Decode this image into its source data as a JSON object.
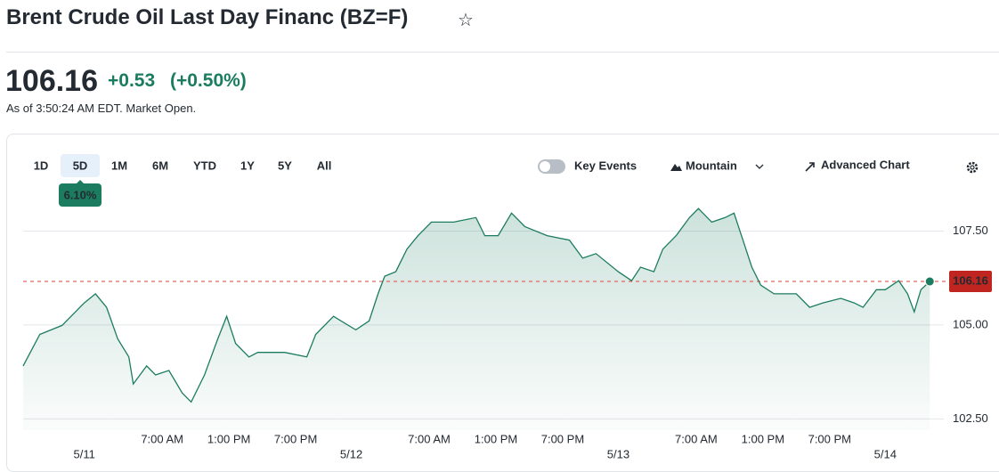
{
  "header": {
    "title": "Brent Crude Oil Last Day Financ (BZ=F)"
  },
  "quote": {
    "price": "106.16",
    "change": "+0.53",
    "change_percent": "(+0.50%)",
    "timestamp": "As of 3:50:24 AM EDT. Market Open."
  },
  "toolbar": {
    "ranges": [
      "1D",
      "5D",
      "1M",
      "6M",
      "YTD",
      "1Y",
      "5Y",
      "All"
    ],
    "selected_range_badge": "6.10%",
    "key_events": "Key Events",
    "chart_type": "Mountain",
    "advanced_chart": "Advanced Chart"
  },
  "chart_data": {
    "type": "line",
    "color": "#1c7c60",
    "x": [
      -5.5,
      -4,
      -2,
      0,
      1,
      2,
      3,
      4,
      4.4,
      5.6,
      6.4,
      7.6,
      8.8,
      9.6,
      10.8,
      12,
      12.8,
      13.6,
      14.8,
      15.6,
      18,
      20,
      20.8,
      22.4,
      24.4,
      25.6,
      26.4,
      27,
      28,
      29,
      30,
      31.2,
      33.2,
      35.2,
      36,
      37.2,
      38.4,
      39.6,
      41.6,
      43.6,
      44.8,
      46,
      48,
      49.2,
      50,
      51.2,
      52,
      53.2,
      54.4,
      55.2,
      56.4,
      57.6,
      58.4,
      59.2,
      60,
      60.8,
      62,
      64,
      65.2,
      66.4,
      68,
      69.2,
      70,
      71.2,
      72,
      73.2,
      74,
      74.6,
      75.2,
      76
    ],
    "values": [
      103.91,
      104.75,
      104.99,
      105.59,
      105.83,
      105.47,
      104.63,
      104.15,
      103.43,
      103.91,
      103.67,
      103.79,
      103.19,
      102.95,
      103.67,
      104.63,
      105.23,
      104.51,
      104.15,
      104.27,
      104.27,
      104.15,
      104.75,
      105.23,
      104.87,
      105.11,
      105.83,
      106.3,
      106.42,
      107.02,
      107.38,
      107.74,
      107.74,
      107.86,
      107.38,
      107.38,
      107.98,
      107.62,
      107.38,
      107.26,
      106.78,
      106.9,
      106.42,
      106.18,
      106.54,
      106.42,
      107.02,
      107.38,
      107.86,
      108.1,
      107.74,
      107.86,
      107.98,
      107.26,
      106.54,
      106.06,
      105.83,
      105.83,
      105.47,
      105.59,
      105.71,
      105.59,
      105.47,
      105.94,
      105.94,
      106.18,
      105.83,
      105.35,
      105.94,
      106.16
    ],
    "xlim": [
      -5.5,
      77.5
    ],
    "xticks": [
      {
        "value": 7,
        "label": "7:00 AM"
      },
      {
        "value": 13,
        "label": "1:00 PM"
      },
      {
        "value": 19,
        "label": "7:00 PM"
      },
      {
        "value": 31,
        "label": "7:00 AM"
      },
      {
        "value": 37,
        "label": "1:00 PM"
      },
      {
        "value": 43,
        "label": "7:00 PM"
      },
      {
        "value": 55,
        "label": "7:00 AM"
      },
      {
        "value": 61,
        "label": "1:00 PM"
      },
      {
        "value": 67,
        "label": "7:00 PM"
      }
    ],
    "date_ticks": [
      {
        "value": 0,
        "label": "5/11"
      },
      {
        "value": 24,
        "label": "5/12"
      },
      {
        "value": 48,
        "label": "5/13"
      },
      {
        "value": 72,
        "label": "5/14"
      }
    ],
    "ylim": [
      102.2,
      108.2
    ],
    "yticks": [
      {
        "value": 107.5,
        "label": "107.50"
      },
      {
        "value": 105,
        "label": "105.00"
      },
      {
        "value": 102.5,
        "label": "102.50"
      }
    ],
    "grid": true,
    "reference_line": 106.16,
    "reference_color": "#e0685f"
  }
}
